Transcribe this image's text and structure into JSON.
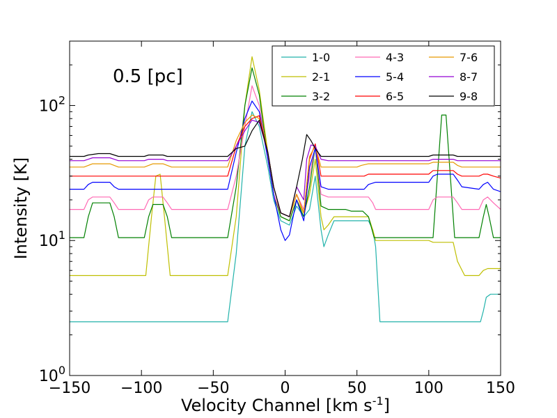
{
  "chart_data": {
    "type": "line",
    "title": "",
    "annotation": "0.5 [pc]",
    "xlabel": "Velocity Channel [km s",
    "xlabel_sup": "-1",
    "xlabel_end": "]",
    "ylabel": "Intensity [K]",
    "xlim": [
      -150,
      150
    ],
    "ylim": [
      1,
      300
    ],
    "yscale": "log",
    "xticks": [
      -150,
      -100,
      -50,
      0,
      50,
      100,
      150
    ],
    "xtick_labels": [
      "−150",
      "−100",
      "−50",
      "0",
      "50",
      "100",
      "150"
    ],
    "yticks": [
      {
        "value": 1,
        "base": "10",
        "exp": "0"
      },
      {
        "value": 10,
        "base": "10",
        "exp": "1"
      },
      {
        "value": 100,
        "base": "10",
        "exp": "2"
      }
    ],
    "legend_position": "top-right",
    "series": [
      {
        "name": "1-0",
        "color": "#20b2aa",
        "points": [
          [
            -150,
            2.5
          ],
          [
            -40,
            2.5
          ],
          [
            -34,
            8
          ],
          [
            -28,
            50
          ],
          [
            -23,
            90
          ],
          [
            -18,
            70
          ],
          [
            -12,
            35
          ],
          [
            -8,
            20
          ],
          [
            -3,
            14
          ],
          [
            3,
            13
          ],
          [
            8,
            18
          ],
          [
            13,
            15
          ],
          [
            17,
            17
          ],
          [
            21,
            30
          ],
          [
            25,
            12
          ],
          [
            27,
            9
          ],
          [
            30,
            11
          ],
          [
            34,
            14
          ],
          [
            58,
            14
          ],
          [
            61,
            12
          ],
          [
            63,
            9
          ],
          [
            66,
            2.5
          ],
          [
            136,
            2.5
          ],
          [
            138,
            3
          ],
          [
            140,
            3.8
          ],
          [
            143,
            4
          ],
          [
            150,
            4
          ]
        ]
      },
      {
        "name": "2-1",
        "color": "#bfbf00",
        "points": [
          [
            -150,
            5.5
          ],
          [
            -97,
            5.5
          ],
          [
            -93,
            15
          ],
          [
            -90,
            30
          ],
          [
            -87,
            31
          ],
          [
            -84,
            15
          ],
          [
            -80,
            5.5
          ],
          [
            -40,
            5.5
          ],
          [
            -34,
            15
          ],
          [
            -28,
            100
          ],
          [
            -23,
            230
          ],
          [
            -18,
            130
          ],
          [
            -12,
            45
          ],
          [
            -8,
            22
          ],
          [
            -3,
            15
          ],
          [
            3,
            14
          ],
          [
            8,
            20
          ],
          [
            13,
            16
          ],
          [
            17,
            22
          ],
          [
            21,
            40
          ],
          [
            25,
            15
          ],
          [
            27,
            12
          ],
          [
            30,
            13
          ],
          [
            34,
            15
          ],
          [
            58,
            15
          ],
          [
            61,
            12
          ],
          [
            63,
            10
          ],
          [
            100,
            10
          ],
          [
            103,
            9.7
          ],
          [
            117,
            9.7
          ],
          [
            120,
            7
          ],
          [
            125,
            5.5
          ],
          [
            135,
            5.5
          ],
          [
            138,
            6
          ],
          [
            141,
            6.2
          ],
          [
            150,
            6.2
          ]
        ]
      },
      {
        "name": "3-2",
        "color": "#008000",
        "points": [
          [
            -150,
            10.5
          ],
          [
            -140,
            10.5
          ],
          [
            -137,
            15
          ],
          [
            -134,
            19
          ],
          [
            -122,
            19
          ],
          [
            -119,
            15
          ],
          [
            -116,
            10.5
          ],
          [
            -98,
            10.5
          ],
          [
            -95,
            15
          ],
          [
            -92,
            18.5
          ],
          [
            -85,
            18.5
          ],
          [
            -82,
            15
          ],
          [
            -79,
            10.5
          ],
          [
            -40,
            10.5
          ],
          [
            -34,
            25
          ],
          [
            -28,
            100
          ],
          [
            -23,
            190
          ],
          [
            -18,
            120
          ],
          [
            -12,
            40
          ],
          [
            -8,
            22
          ],
          [
            -3,
            15
          ],
          [
            3,
            14
          ],
          [
            8,
            20
          ],
          [
            13,
            15
          ],
          [
            17,
            25
          ],
          [
            21,
            50
          ],
          [
            25,
            18
          ],
          [
            30,
            17
          ],
          [
            42,
            17
          ],
          [
            46,
            16.5
          ],
          [
            54,
            16.5
          ],
          [
            58,
            15
          ],
          [
            62,
            10.5
          ],
          [
            103,
            10.5
          ],
          [
            106,
            30
          ],
          [
            109,
            85
          ],
          [
            112,
            85
          ],
          [
            115,
            30
          ],
          [
            118,
            10.5
          ],
          [
            135,
            10.5
          ],
          [
            138,
            15
          ],
          [
            140,
            18.5
          ],
          [
            142,
            15
          ],
          [
            145,
            10.5
          ],
          [
            150,
            10.5
          ]
        ]
      },
      {
        "name": "4-3",
        "color": "#ff69b4",
        "points": [
          [
            -150,
            17
          ],
          [
            -140,
            17
          ],
          [
            -137,
            20
          ],
          [
            -134,
            21
          ],
          [
            -122,
            21
          ],
          [
            -119,
            19
          ],
          [
            -116,
            17
          ],
          [
            -98,
            17
          ],
          [
            -95,
            20
          ],
          [
            -92,
            21
          ],
          [
            -85,
            21
          ],
          [
            -82,
            19
          ],
          [
            -79,
            17
          ],
          [
            -40,
            17
          ],
          [
            -34,
            30
          ],
          [
            -28,
            70
          ],
          [
            -23,
            140
          ],
          [
            -18,
            100
          ],
          [
            -12,
            40
          ],
          [
            -8,
            22
          ],
          [
            -3,
            16
          ],
          [
            3,
            15
          ],
          [
            8,
            22
          ],
          [
            13,
            17
          ],
          [
            17,
            30
          ],
          [
            21,
            50
          ],
          [
            25,
            22
          ],
          [
            30,
            21
          ],
          [
            58,
            21
          ],
          [
            61,
            19
          ],
          [
            63,
            17
          ],
          [
            100,
            17
          ],
          [
            103,
            20
          ],
          [
            106,
            21
          ],
          [
            117,
            21
          ],
          [
            120,
            19
          ],
          [
            123,
            17
          ],
          [
            135,
            17
          ],
          [
            138,
            20
          ],
          [
            141,
            21
          ],
          [
            145,
            19
          ],
          [
            150,
            17
          ]
        ]
      },
      {
        "name": "5-4",
        "color": "#0000ff",
        "points": [
          [
            -150,
            24
          ],
          [
            -140,
            24
          ],
          [
            -137,
            26
          ],
          [
            -134,
            27
          ],
          [
            -122,
            27
          ],
          [
            -119,
            25
          ],
          [
            -116,
            24
          ],
          [
            -40,
            24
          ],
          [
            -34,
            45
          ],
          [
            -28,
            80
          ],
          [
            -23,
            108
          ],
          [
            -18,
            90
          ],
          [
            -12,
            40
          ],
          [
            -8,
            22
          ],
          [
            -3,
            12
          ],
          [
            0,
            10
          ],
          [
            3,
            11
          ],
          [
            8,
            20
          ],
          [
            13,
            14
          ],
          [
            17,
            35
          ],
          [
            21,
            48
          ],
          [
            25,
            25
          ],
          [
            30,
            24
          ],
          [
            55,
            24
          ],
          [
            58,
            26
          ],
          [
            63,
            27
          ],
          [
            100,
            27
          ],
          [
            103,
            30
          ],
          [
            106,
            31
          ],
          [
            117,
            31
          ],
          [
            120,
            28
          ],
          [
            123,
            25
          ],
          [
            135,
            24
          ],
          [
            138,
            26
          ],
          [
            141,
            27
          ],
          [
            145,
            24
          ],
          [
            150,
            23
          ]
        ]
      },
      {
        "name": "6-5",
        "color": "#ff0000",
        "points": [
          [
            -150,
            30
          ],
          [
            -40,
            30
          ],
          [
            -34,
            50
          ],
          [
            -28,
            70
          ],
          [
            -23,
            80
          ],
          [
            -18,
            84
          ],
          [
            -12,
            45
          ],
          [
            -8,
            25
          ],
          [
            -3,
            16
          ],
          [
            3,
            15
          ],
          [
            8,
            22
          ],
          [
            13,
            16
          ],
          [
            17,
            40
          ],
          [
            21,
            52
          ],
          [
            25,
            30
          ],
          [
            55,
            30
          ],
          [
            58,
            31
          ],
          [
            63,
            31
          ],
          [
            100,
            31
          ],
          [
            103,
            33
          ],
          [
            117,
            33
          ],
          [
            120,
            31
          ],
          [
            123,
            30
          ],
          [
            135,
            30
          ],
          [
            138,
            31
          ],
          [
            141,
            31
          ],
          [
            145,
            30
          ],
          [
            150,
            29
          ]
        ]
      },
      {
        "name": "7-6",
        "color": "#e69900",
        "points": [
          [
            -150,
            35
          ],
          [
            -140,
            35
          ],
          [
            -137,
            36
          ],
          [
            -134,
            37
          ],
          [
            -122,
            37
          ],
          [
            -119,
            36
          ],
          [
            -116,
            35
          ],
          [
            -98,
            35
          ],
          [
            -95,
            36
          ],
          [
            -92,
            37
          ],
          [
            -85,
            37
          ],
          [
            -82,
            36
          ],
          [
            -79,
            35
          ],
          [
            -40,
            35
          ],
          [
            -34,
            55
          ],
          [
            -28,
            75
          ],
          [
            -23,
            85
          ],
          [
            -18,
            80
          ],
          [
            -12,
            45
          ],
          [
            -8,
            25
          ],
          [
            -3,
            16
          ],
          [
            3,
            15
          ],
          [
            8,
            22
          ],
          [
            13,
            16
          ],
          [
            17,
            42
          ],
          [
            21,
            50
          ],
          [
            25,
            35
          ],
          [
            50,
            35
          ],
          [
            53,
            36
          ],
          [
            58,
            37
          ],
          [
            100,
            37
          ],
          [
            103,
            38
          ],
          [
            117,
            38
          ],
          [
            120,
            36
          ],
          [
            123,
            35
          ],
          [
            150,
            35
          ]
        ]
      },
      {
        "name": "8-7",
        "color": "#9400d3",
        "points": [
          [
            -150,
            39
          ],
          [
            -140,
            39
          ],
          [
            -137,
            40
          ],
          [
            -134,
            41
          ],
          [
            -122,
            41
          ],
          [
            -119,
            40
          ],
          [
            -116,
            39
          ],
          [
            -98,
            39
          ],
          [
            -95,
            40
          ],
          [
            -92,
            40
          ],
          [
            -85,
            40
          ],
          [
            -82,
            39
          ],
          [
            -79,
            39
          ],
          [
            -40,
            39
          ],
          [
            -34,
            50
          ],
          [
            -28,
            65
          ],
          [
            -23,
            78
          ],
          [
            -18,
            75
          ],
          [
            -12,
            45
          ],
          [
            -8,
            25
          ],
          [
            -3,
            16
          ],
          [
            3,
            15
          ],
          [
            8,
            25
          ],
          [
            13,
            20
          ],
          [
            15,
            40
          ],
          [
            18,
            51
          ],
          [
            21,
            50
          ],
          [
            25,
            40
          ],
          [
            30,
            39
          ],
          [
            100,
            39
          ],
          [
            103,
            40
          ],
          [
            117,
            40
          ],
          [
            120,
            39
          ],
          [
            150,
            39
          ]
        ]
      },
      {
        "name": "9-8",
        "color": "#000000",
        "points": [
          [
            -150,
            42
          ],
          [
            -140,
            42
          ],
          [
            -137,
            43
          ],
          [
            -130,
            44
          ],
          [
            -122,
            44
          ],
          [
            -119,
            43
          ],
          [
            -116,
            42
          ],
          [
            -98,
            42
          ],
          [
            -95,
            43
          ],
          [
            -92,
            43
          ],
          [
            -85,
            43
          ],
          [
            -82,
            42
          ],
          [
            -79,
            42
          ],
          [
            -40,
            42
          ],
          [
            -34,
            48
          ],
          [
            -28,
            50
          ],
          [
            -23,
            65
          ],
          [
            -18,
            78
          ],
          [
            -12,
            45
          ],
          [
            -8,
            25
          ],
          [
            -3,
            16
          ],
          [
            3,
            15
          ],
          [
            8,
            25
          ],
          [
            12,
            40
          ],
          [
            15,
            61
          ],
          [
            18,
            55
          ],
          [
            21,
            48
          ],
          [
            25,
            42
          ],
          [
            100,
            42
          ],
          [
            103,
            43
          ],
          [
            117,
            43
          ],
          [
            120,
            42
          ],
          [
            150,
            42
          ]
        ]
      }
    ]
  }
}
